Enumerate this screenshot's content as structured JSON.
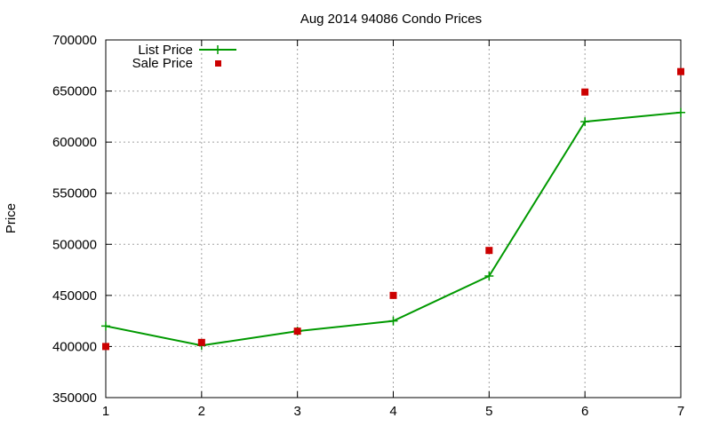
{
  "chart_data": {
    "type": "line",
    "title": "Aug 2014 94086 Condo Prices",
    "xlabel": "",
    "ylabel": "Price",
    "x": [
      1,
      2,
      3,
      4,
      5,
      6,
      7
    ],
    "xlim": [
      1,
      7
    ],
    "ylim": [
      350000,
      700000
    ],
    "xticks": [
      "1",
      "2",
      "3",
      "4",
      "5",
      "6",
      "7"
    ],
    "yticks": [
      "350000",
      "400000",
      "450000",
      "500000",
      "550000",
      "600000",
      "650000",
      "700000"
    ],
    "grid": true,
    "legend_position": "top-left",
    "series": [
      {
        "name": "List Price",
        "style": "line-with-plus-markers",
        "color": "#009900",
        "values": [
          420000,
          401000,
          415000,
          425000,
          469000,
          620000,
          629000
        ]
      },
      {
        "name": "Sale Price",
        "style": "square-markers",
        "color": "#cc0000",
        "values": [
          400000,
          404000,
          415000,
          450000,
          494000,
          649000,
          669000
        ]
      }
    ]
  }
}
